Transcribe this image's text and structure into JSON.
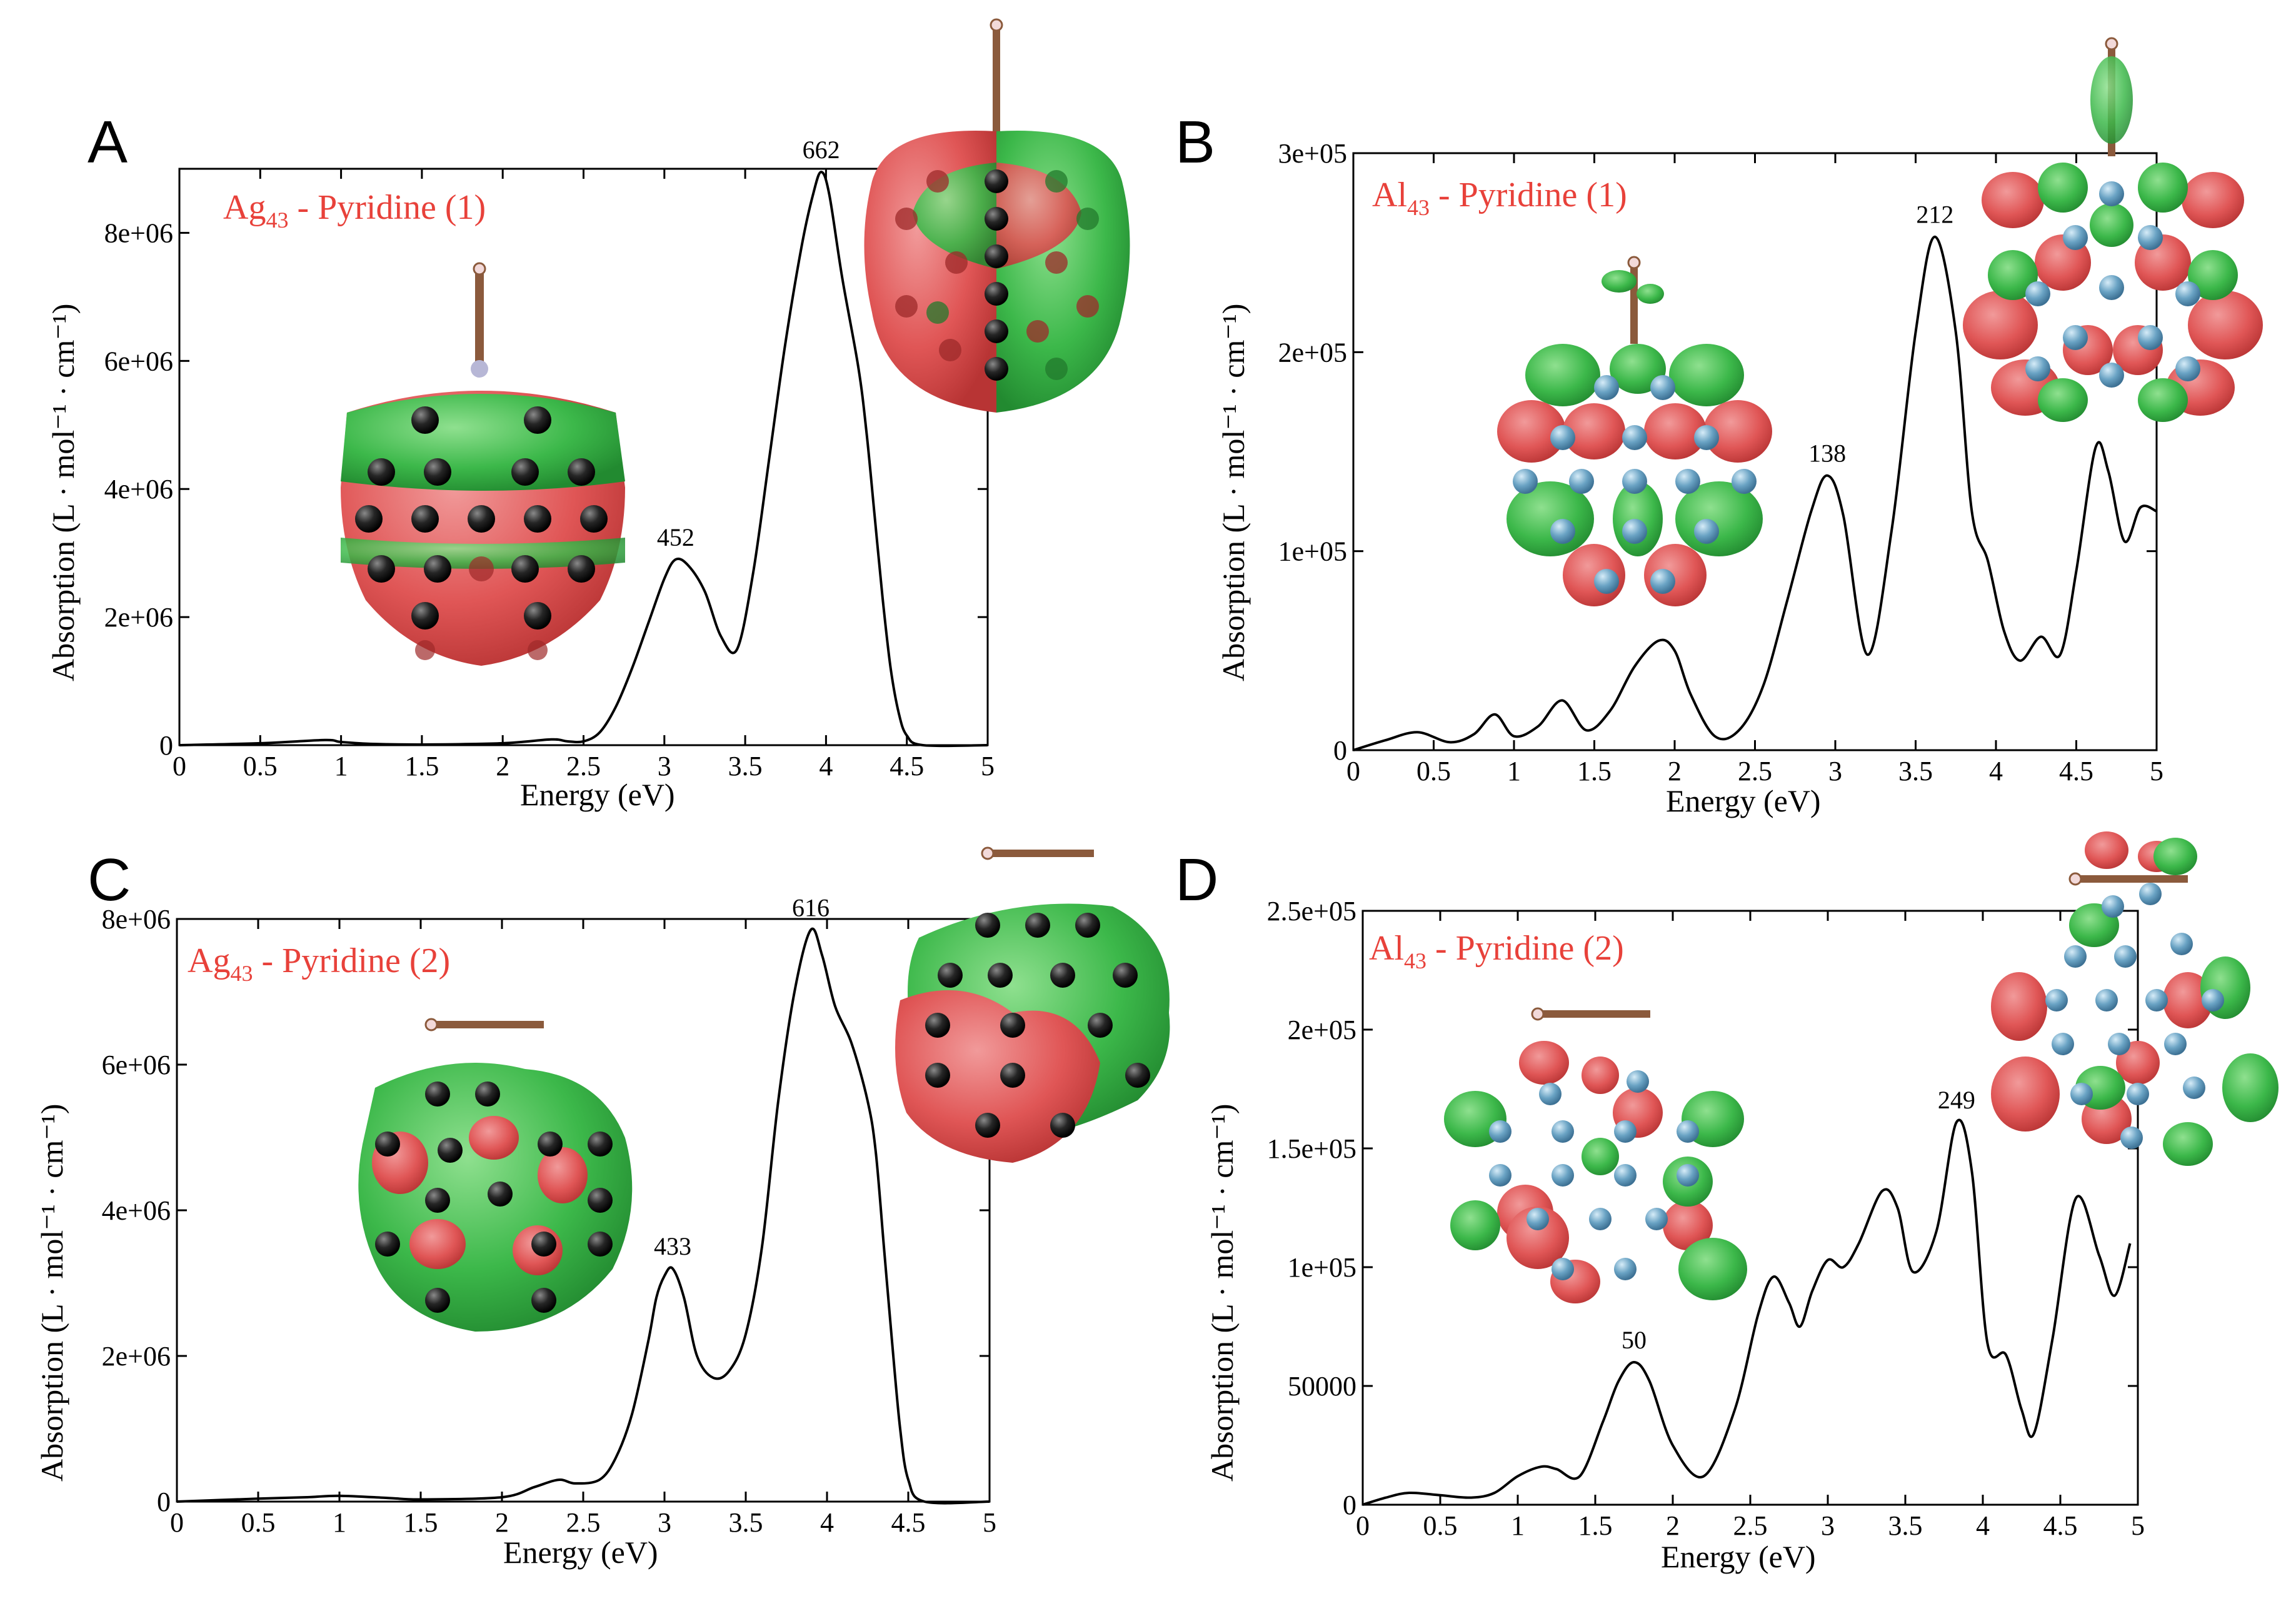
{
  "colors": {
    "title": "#e8413a",
    "orbital_red": "#e05656",
    "orbital_green": "#3cb84a",
    "atom_ag": "#1e1e1e",
    "atom_al": "#6aa3c4",
    "pyridine": "#8b5a3c"
  },
  "chart_data": [
    {
      "panel": "A",
      "type": "line",
      "title": {
        "main": "Ag",
        "sub": "43",
        "rest": " - Pyridine (1)"
      },
      "xlabel": "Energy (eV)",
      "ylabel": "Absorption (L · mol⁻¹ · cm⁻¹)",
      "xlim": [
        0,
        5
      ],
      "ylim": [
        0,
        9000000
      ],
      "xticks": [
        0,
        0.5,
        1,
        1.5,
        2,
        2.5,
        3,
        3.5,
        4,
        4.5,
        5
      ],
      "xtick_labels": [
        "0",
        "0.5",
        "1",
        "1.5",
        "2",
        "2.5",
        "3",
        "3.5",
        "4",
        "4.5",
        "5"
      ],
      "yticks": [
        0,
        2000000,
        4000000,
        6000000,
        8000000
      ],
      "ytick_labels": [
        "0",
        "2e+06",
        "4e+06",
        "6e+06",
        "8e+06"
      ],
      "annotations": [
        {
          "text": "452",
          "x": 3.07,
          "y": 2900000
        },
        {
          "text": "662",
          "x": 3.97,
          "y": 8950000
        }
      ],
      "x": [
        0,
        0.5,
        0.9,
        1.0,
        1.2,
        1.5,
        2.0,
        2.3,
        2.4,
        2.5,
        2.6,
        2.7,
        2.8,
        2.9,
        3.0,
        3.07,
        3.15,
        3.25,
        3.35,
        3.45,
        3.55,
        3.65,
        3.75,
        3.85,
        3.92,
        3.97,
        4.02,
        4.1,
        4.2,
        4.25,
        4.3,
        4.35,
        4.4,
        4.45,
        4.5,
        4.6,
        5.0
      ],
      "values": [
        0,
        30000,
        80000,
        50000,
        20000,
        10000,
        30000,
        90000,
        60000,
        60000,
        200000,
        600000,
        1200000,
        1900000,
        2600000,
        2900000,
        2800000,
        2400000,
        1700000,
        1500000,
        2700000,
        4500000,
        6300000,
        7800000,
        8600000,
        8950000,
        8600000,
        7300000,
        5900000,
        4900000,
        3600000,
        2300000,
        1200000,
        500000,
        150000,
        0,
        0
      ]
    },
    {
      "panel": "B",
      "type": "line",
      "title": {
        "main": "Al",
        "sub": "43",
        "rest": " - Pyridine (1)"
      },
      "xlabel": "Energy (eV)",
      "ylabel": "Absorption (L · mol⁻¹ · cm⁻¹)",
      "xlim": [
        0,
        5
      ],
      "ylim": [
        0,
        300000
      ],
      "xticks": [
        0,
        0.5,
        1,
        1.5,
        2,
        2.5,
        3,
        3.5,
        4,
        4.5,
        5
      ],
      "xtick_labels": [
        "0",
        "0.5",
        "1",
        "1.5",
        "2",
        "2.5",
        "3",
        "3.5",
        "4",
        "4.5",
        "5"
      ],
      "yticks": [
        0,
        100000,
        200000,
        300000
      ],
      "ytick_labels": [
        "0",
        "1e+05",
        "2e+05",
        "3e+05"
      ],
      "annotations": [
        {
          "text": "138",
          "x": 2.95,
          "y": 138000
        },
        {
          "text": "212",
          "x": 3.62,
          "y": 258000
        }
      ],
      "x": [
        0,
        0.2,
        0.4,
        0.6,
        0.75,
        0.88,
        1.0,
        1.15,
        1.3,
        1.45,
        1.6,
        1.75,
        1.9,
        2.0,
        2.1,
        2.25,
        2.4,
        2.55,
        2.7,
        2.85,
        2.95,
        3.05,
        3.2,
        3.35,
        3.5,
        3.62,
        3.75,
        3.85,
        3.95,
        4.05,
        4.15,
        4.28,
        4.4,
        4.5,
        4.62,
        4.7,
        4.8,
        4.9,
        5.0
      ],
      "values": [
        0,
        5000,
        9000,
        4000,
        8000,
        18000,
        7000,
        12000,
        25000,
        10000,
        20000,
        42000,
        55000,
        50000,
        28000,
        7000,
        10000,
        32000,
        75000,
        120000,
        138000,
        118000,
        48000,
        110000,
        210000,
        258000,
        210000,
        120000,
        95000,
        60000,
        45000,
        57000,
        48000,
        90000,
        152000,
        140000,
        105000,
        122000,
        120000
      ]
    },
    {
      "panel": "C",
      "type": "line",
      "title": {
        "main": "Ag",
        "sub": "43",
        "rest": " - Pyridine (2)"
      },
      "xlabel": "Energy (eV)",
      "ylabel": "Absorption (L · mol⁻¹ · cm⁻¹)",
      "xlim": [
        0,
        5
      ],
      "ylim": [
        0,
        8000000
      ],
      "xticks": [
        0,
        0.5,
        1,
        1.5,
        2,
        2.5,
        3,
        3.5,
        4,
        4.5,
        5
      ],
      "xtick_labels": [
        "0",
        "0.5",
        "1",
        "1.5",
        "2",
        "2.5",
        "3",
        "3.5",
        "4",
        "4.5",
        "5"
      ],
      "yticks": [
        0,
        2000000,
        4000000,
        6000000,
        8000000
      ],
      "ytick_labels": [
        "0",
        "2e+06",
        "4e+06",
        "6e+06",
        "8e+06"
      ],
      "annotations": [
        {
          "text": "433",
          "x": 3.05,
          "y": 3200000
        },
        {
          "text": "616",
          "x": 3.9,
          "y": 7850000
        }
      ],
      "x": [
        0,
        0.5,
        0.8,
        1.0,
        1.3,
        1.5,
        2.0,
        2.2,
        2.35,
        2.45,
        2.6,
        2.7,
        2.8,
        2.9,
        2.95,
        3.0,
        3.05,
        3.12,
        3.2,
        3.3,
        3.4,
        3.5,
        3.6,
        3.7,
        3.8,
        3.9,
        3.97,
        4.05,
        4.15,
        4.25,
        4.3,
        4.35,
        4.4,
        4.45,
        4.5,
        4.6,
        5.0
      ],
      "values": [
        0,
        40000,
        60000,
        80000,
        50000,
        30000,
        60000,
        200000,
        300000,
        250000,
        300000,
        600000,
        1200000,
        2200000,
        2800000,
        3100000,
        3200000,
        2800000,
        2000000,
        1700000,
        1800000,
        2300000,
        3500000,
        5500000,
        7000000,
        7850000,
        7500000,
        6800000,
        6300000,
        5500000,
        4800000,
        3500000,
        2200000,
        1000000,
        300000,
        0,
        0
      ]
    },
    {
      "panel": "D",
      "type": "line",
      "title": {
        "main": "Al",
        "sub": "43",
        "rest": " - Pyridine (2)"
      },
      "xlabel": "Energy (eV)",
      "ylabel": "Absorption (L · mol⁻¹ · cm⁻¹)",
      "xlim": [
        0,
        5
      ],
      "ylim": [
        0,
        250000
      ],
      "xticks": [
        0,
        0.5,
        1,
        1.5,
        2,
        2.5,
        3,
        3.5,
        4,
        4.5,
        5
      ],
      "xtick_labels": [
        "0",
        "0.5",
        "1",
        "1.5",
        "2",
        "2.5",
        "3",
        "3.5",
        "4",
        "4.5",
        "5"
      ],
      "yticks": [
        0,
        50000,
        100000,
        150000,
        200000,
        250000
      ],
      "ytick_labels": [
        "0",
        "50000",
        "1e+05",
        "1.5e+05",
        "2e+05",
        "2.5e+05"
      ],
      "annotations": [
        {
          "text": "50",
          "x": 1.75,
          "y": 60000
        },
        {
          "text": "249",
          "x": 3.83,
          "y": 161000
        }
      ],
      "x": [
        0,
        0.15,
        0.3,
        0.5,
        0.7,
        0.85,
        1.0,
        1.15,
        1.25,
        1.4,
        1.55,
        1.65,
        1.75,
        1.85,
        2.0,
        2.2,
        2.4,
        2.55,
        2.65,
        2.75,
        2.82,
        2.9,
        3.0,
        3.1,
        3.2,
        3.35,
        3.45,
        3.55,
        3.7,
        3.83,
        3.93,
        4.03,
        4.15,
        4.25,
        4.33,
        4.45,
        4.6,
        4.75,
        4.85,
        4.95
      ],
      "values": [
        0,
        3000,
        5000,
        4000,
        3000,
        5000,
        12000,
        16000,
        15000,
        12000,
        35000,
        52000,
        60000,
        52000,
        25000,
        12000,
        40000,
        80000,
        96000,
        85000,
        75000,
        90000,
        103000,
        100000,
        110000,
        132000,
        125000,
        98000,
        115000,
        161000,
        140000,
        68000,
        63000,
        40000,
        30000,
        70000,
        129000,
        105000,
        88000,
        110000
      ]
    }
  ]
}
